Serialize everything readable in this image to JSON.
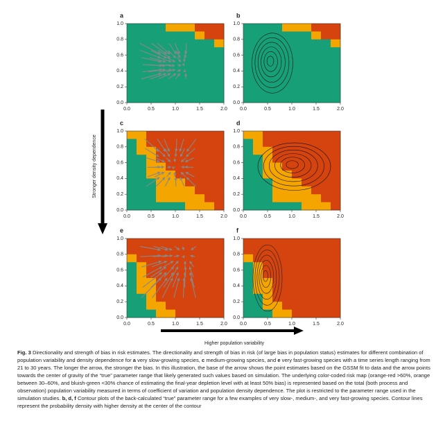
{
  "figure": {
    "panels": [
      {
        "label": "a"
      },
      {
        "label": "b"
      },
      {
        "label": "c"
      },
      {
        "label": "d"
      },
      {
        "label": "e"
      },
      {
        "label": "f"
      }
    ],
    "yticks": [
      "0.0",
      "0.2",
      "0.4",
      "0.6",
      "0.8",
      "1.0"
    ],
    "xticks": [
      "0.0",
      "0.5",
      "1.0",
      "1.5",
      "2.0"
    ],
    "ylabel": "Stronger density dependence",
    "xlabel": "Higher population variability"
  },
  "caption": {
    "label": "Fig. 3",
    "segments": [
      "Directionality and strength of bias in risk estimates. The directionality and strength of bias in risk (of large bias in population status) estimates for different combination of population variability and density dependence for ",
      "a",
      " very slow-growing species, ",
      "c",
      " medium-growing species, and ",
      "e",
      " very fast-growing species with a time series length ranging from 21 to 30 years. The longer the arrow, the stronger the bias. In this illustration, the base of the arrow shows the point estimates based on the GSSM fit to data and the arrow points towards the center of gravity of the “true” parameter range that likely generated such values based on simulation. The underlying color-coded risk map (orange-red >60%, orange between 30–60%, and bluish-green <30% chance of estimating the final-year depletion level with at least 50% bias) is represented based on the total (both process and observation) population variability measured in terms of coefficient of variation and population density dependence. The plot is restricted to the parameter range used in the simulation studies. ",
      "b, d, f",
      " Contour plots of the back-calculated “true” parameter range for a few examples of very slow-, medium-, and very fast-growing species. Contour lines represent the probability density with higher density at the center of the contour"
    ]
  }
}
